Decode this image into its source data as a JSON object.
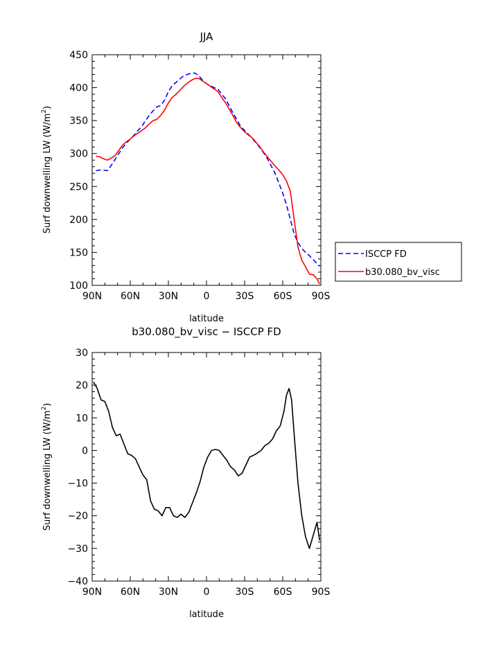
{
  "charts": [
    {
      "id": "top",
      "title": "JJA",
      "xlabel": "latitude",
      "ylabel": "Surf downwelling LW (W/m²)",
      "ylabel_main": "Surf downwelling LW (W/m",
      "ylabel_sup": "2",
      "ylabel_close": ")",
      "xticks": [
        "90N",
        "60N",
        "30N",
        "0",
        "30S",
        "60S",
        "90S"
      ],
      "yticks": [
        "100",
        "150",
        "200",
        "250",
        "300",
        "350",
        "400",
        "450"
      ]
    },
    {
      "id": "bottom",
      "title": "b30.080_bv_visc − ISCCP FD",
      "xlabel": "latitude",
      "ylabel": "Surf downwelling LW (W/m²)",
      "ylabel_main": "Surf downwelling LW (W/m",
      "ylabel_sup": "2",
      "ylabel_close": ")",
      "xticks": [
        "90N",
        "60N",
        "30N",
        "0",
        "30S",
        "60S",
        "90S"
      ],
      "yticks": [
        "−40",
        "−30",
        "−20",
        "−10",
        "0",
        "10",
        "20",
        "30"
      ]
    }
  ],
  "legend": {
    "items": [
      {
        "label": "ISCCP FD",
        "color": "#0000ff",
        "style": "dashed"
      },
      {
        "label": "b30.080_bv_visc",
        "color": "#ff0000",
        "style": "solid"
      }
    ]
  },
  "chart_data": [
    {
      "type": "line",
      "title": "JJA",
      "xlabel": "latitude",
      "ylabel": "Surf downwelling LW (W/m²)",
      "xlim": [
        90,
        -90
      ],
      "ylim": [
        100,
        450
      ],
      "x_note_units": "degrees latitude, north positive",
      "grid": false,
      "legend_position": "right",
      "series": [
        {
          "name": "ISCCP FD",
          "color": "#0000ff",
          "style": "dashed",
          "x": [
            87,
            84,
            81,
            78,
            75,
            72,
            69,
            66,
            63,
            60,
            57,
            54,
            51,
            48,
            45,
            42,
            39,
            36,
            33,
            30,
            27,
            24,
            21,
            18,
            15,
            12,
            9,
            6,
            3,
            0,
            -3,
            -6,
            -9,
            -12,
            -15,
            -18,
            -21,
            -24,
            -27,
            -30,
            -33,
            -36,
            -39,
            -42,
            -45,
            -48,
            -51,
            -54,
            -57,
            -60,
            -63,
            -66,
            -69,
            -72,
            -75,
            -78,
            -81,
            -84,
            -87,
            -89
          ],
          "y": [
            274,
            275,
            275,
            274,
            282,
            291,
            300,
            309,
            316,
            322,
            328,
            335,
            341,
            350,
            358,
            365,
            371,
            373,
            381,
            394,
            403,
            408,
            413,
            418,
            420,
            422,
            422,
            418,
            411,
            406,
            403,
            400,
            398,
            390,
            383,
            372,
            361,
            351,
            341,
            335,
            329,
            323,
            316,
            309,
            301,
            292,
            281,
            270,
            255,
            240,
            222,
            200,
            178,
            165,
            156,
            150,
            145,
            139,
            133,
            129
          ]
        },
        {
          "name": "b30.080_bv_visc",
          "color": "#ff0000",
          "style": "solid",
          "x": [
            87,
            84,
            81,
            78,
            75,
            72,
            69,
            66,
            63,
            60,
            57,
            54,
            51,
            48,
            45,
            42,
            39,
            36,
            33,
            30,
            27,
            24,
            21,
            18,
            15,
            12,
            9,
            6,
            3,
            0,
            -3,
            -6,
            -9,
            -12,
            -15,
            -18,
            -21,
            -24,
            -27,
            -30,
            -33,
            -36,
            -39,
            -42,
            -45,
            -48,
            -51,
            -54,
            -57,
            -60,
            -63,
            -66,
            -69,
            -72,
            -75,
            -78,
            -81,
            -84,
            -87,
            -89
          ],
          "y": [
            296,
            295,
            292,
            290,
            293,
            297,
            305,
            313,
            318,
            322,
            327,
            331,
            335,
            339,
            345,
            350,
            352,
            358,
            366,
            377,
            385,
            390,
            396,
            402,
            407,
            411,
            414,
            414,
            410,
            406,
            402,
            398,
            394,
            385,
            377,
            367,
            357,
            346,
            339,
            333,
            328,
            324,
            317,
            310,
            302,
            295,
            288,
            281,
            275,
            268,
            258,
            243,
            200,
            158,
            138,
            128,
            117,
            116,
            110,
            102
          ]
        }
      ]
    },
    {
      "type": "line",
      "title": "b30.080_bv_visc − ISCCP FD",
      "xlabel": "latitude",
      "ylabel": "Surf downwelling LW (W/m²)",
      "xlim": [
        90,
        -90
      ],
      "ylim": [
        -40,
        30
      ],
      "grid": false,
      "series": [
        {
          "color": "#000000",
          "style": "solid",
          "x": [
            89,
            86,
            83,
            80,
            77,
            74,
            71,
            68,
            65,
            62,
            59,
            56,
            53,
            50,
            47,
            44,
            41,
            38,
            35,
            32,
            29,
            26,
            23,
            20,
            17,
            14,
            11,
            8,
            5,
            2,
            -1,
            -4,
            -7,
            -10,
            -13,
            -16,
            -19,
            -22,
            -25,
            -28,
            -31,
            -34,
            -37,
            -40,
            -43,
            -46,
            -49,
            -52,
            -55,
            -58,
            -61,
            -63,
            -65,
            -67,
            -69,
            -72,
            -75,
            -78,
            -81,
            -84,
            -87,
            -89
          ],
          "y": [
            21,
            19,
            15.5,
            15,
            12,
            7,
            4.5,
            5,
            2,
            -1,
            -1.5,
            -2.5,
            -5,
            -7.5,
            -9,
            -15.5,
            -18,
            -18.5,
            -20,
            -17.5,
            -17.5,
            -20,
            -20.5,
            -19.5,
            -20.5,
            -19,
            -16,
            -13,
            -9.5,
            -5,
            -2,
            0,
            0.3,
            0,
            -1.5,
            -3,
            -5,
            -6,
            -7.8,
            -7,
            -4.5,
            -2,
            -1.5,
            -0.8,
            0,
            1.5,
            2.2,
            3.5,
            6,
            7.5,
            12,
            17,
            19,
            15.5,
            5,
            -10,
            -20,
            -26.5,
            -30,
            -26,
            -22,
            -27.5
          ]
        }
      ]
    }
  ]
}
